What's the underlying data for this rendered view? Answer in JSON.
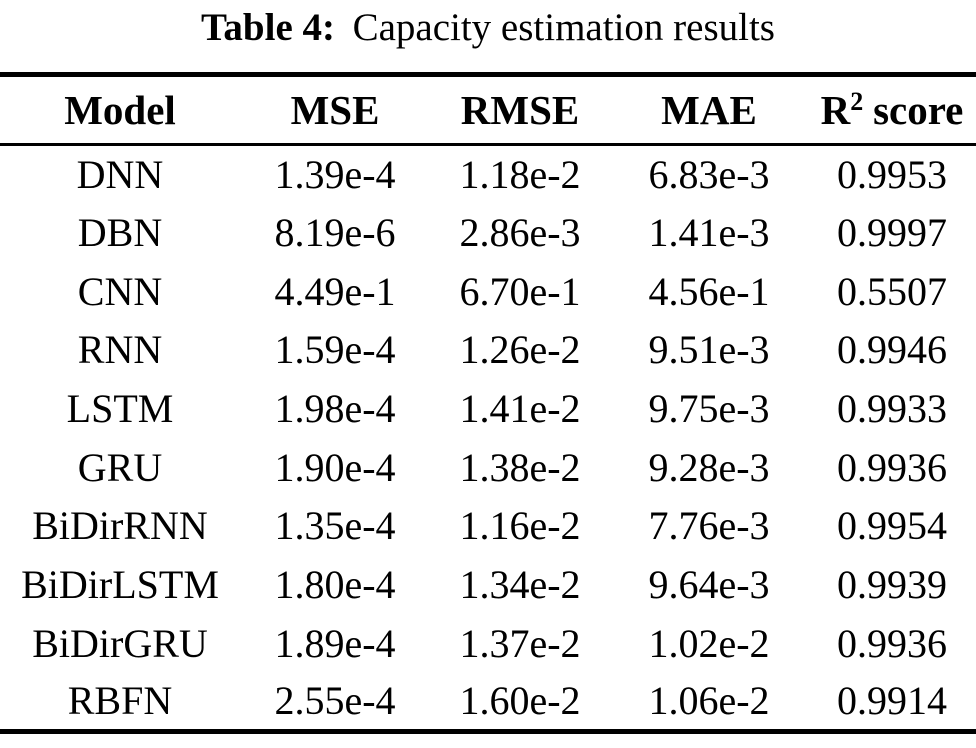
{
  "page": {
    "background_color": "#ffffff",
    "text_color": "#000000",
    "rule_color": "#000000"
  },
  "caption": {
    "label": "Table 4:",
    "text": "Capacity estimation results"
  },
  "table": {
    "headers": [
      "Model",
      "MSE",
      "RMSE",
      "MAE"
    ],
    "r2_header": {
      "base": "R",
      "sup": "2",
      "rest": "score"
    },
    "rows": [
      [
        "DNN",
        "1.39e-4",
        "1.18e-2",
        "6.83e-3",
        "0.9953"
      ],
      [
        "DBN",
        "8.19e-6",
        "2.86e-3",
        "1.41e-3",
        "0.9997"
      ],
      [
        "CNN",
        "4.49e-1",
        "6.70e-1",
        "4.56e-1",
        "0.5507"
      ],
      [
        "RNN",
        "1.59e-4",
        "1.26e-2",
        "9.51e-3",
        "0.9946"
      ],
      [
        "LSTM",
        "1.98e-4",
        "1.41e-2",
        "9.75e-3",
        "0.9933"
      ],
      [
        "GRU",
        "1.90e-4",
        "1.38e-2",
        "9.28e-3",
        "0.9936"
      ],
      [
        "BiDirRNN",
        "1.35e-4",
        "1.16e-2",
        "7.76e-3",
        "0.9954"
      ],
      [
        "BiDirLSTM",
        "1.80e-4",
        "1.34e-2",
        "9.64e-3",
        "0.9939"
      ],
      [
        "BiDirGRU",
        "1.89e-4",
        "1.37e-2",
        "1.02e-2",
        "0.9936"
      ],
      [
        "RBFN",
        "2.55e-4",
        "1.60e-2",
        "1.06e-2",
        "0.9914"
      ]
    ]
  }
}
